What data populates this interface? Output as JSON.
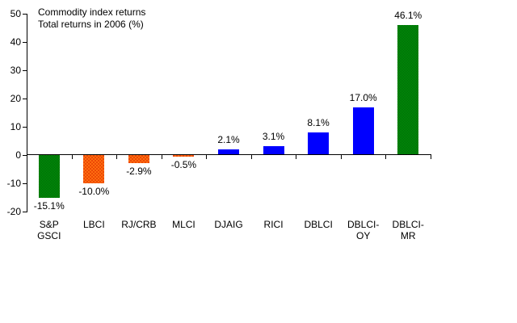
{
  "chart_data": {
    "type": "bar",
    "title": "Commodity index returns",
    "subtitle": "Total returns in 2006 (%)",
    "ylim": [
      -20,
      50
    ],
    "y_ticks": [
      50,
      40,
      30,
      20,
      10,
      0,
      -10,
      -20
    ],
    "grid": false,
    "legend": "none",
    "categories": [
      "S&P GSCI",
      "LBCI",
      "RJ/CRB",
      "MLCI",
      "DJAIG",
      "RICI",
      "DBLCI",
      "DBLCI-OY",
      "DBLCI-MR"
    ],
    "bars": [
      {
        "category_lines": [
          "S&P",
          "GSCI"
        ],
        "value": -15.1,
        "label": "-15.1%",
        "style": "green-check"
      },
      {
        "category_lines": [
          "LBCI"
        ],
        "value": -10.0,
        "label": "-10.0%",
        "style": "orange-dot"
      },
      {
        "category_lines": [
          "RJ/CRB"
        ],
        "value": -2.9,
        "label": "-2.9%",
        "style": "orange-dot"
      },
      {
        "category_lines": [
          "MLCI"
        ],
        "value": -0.5,
        "label": "-0.5%",
        "style": "orange-dot"
      },
      {
        "category_lines": [
          "DJAIG"
        ],
        "value": 2.1,
        "label": "2.1%",
        "style": "blue-solid"
      },
      {
        "category_lines": [
          "RICI"
        ],
        "value": 3.1,
        "label": "3.1%",
        "style": "blue-solid"
      },
      {
        "category_lines": [
          "DBLCI"
        ],
        "value": 8.1,
        "label": "8.1%",
        "style": "blue-solid"
      },
      {
        "category_lines": [
          "DBLCI-",
          "OY"
        ],
        "value": 17.0,
        "label": "17.0%",
        "style": "blue-solid"
      },
      {
        "category_lines": [
          "DBLCI-",
          "MR"
        ],
        "value": 46.1,
        "label": "46.1%",
        "style": "green-check"
      }
    ],
    "colors": {
      "green": "#008000",
      "green_check_light": "#00a005",
      "green_check_dark": "#005a0a",
      "orange": "#ff6e0f",
      "orange_dot": "#dd2b00",
      "blue": "#0000ff",
      "axis": "#000000",
      "text": "#000000",
      "background": "#ffffff"
    }
  }
}
